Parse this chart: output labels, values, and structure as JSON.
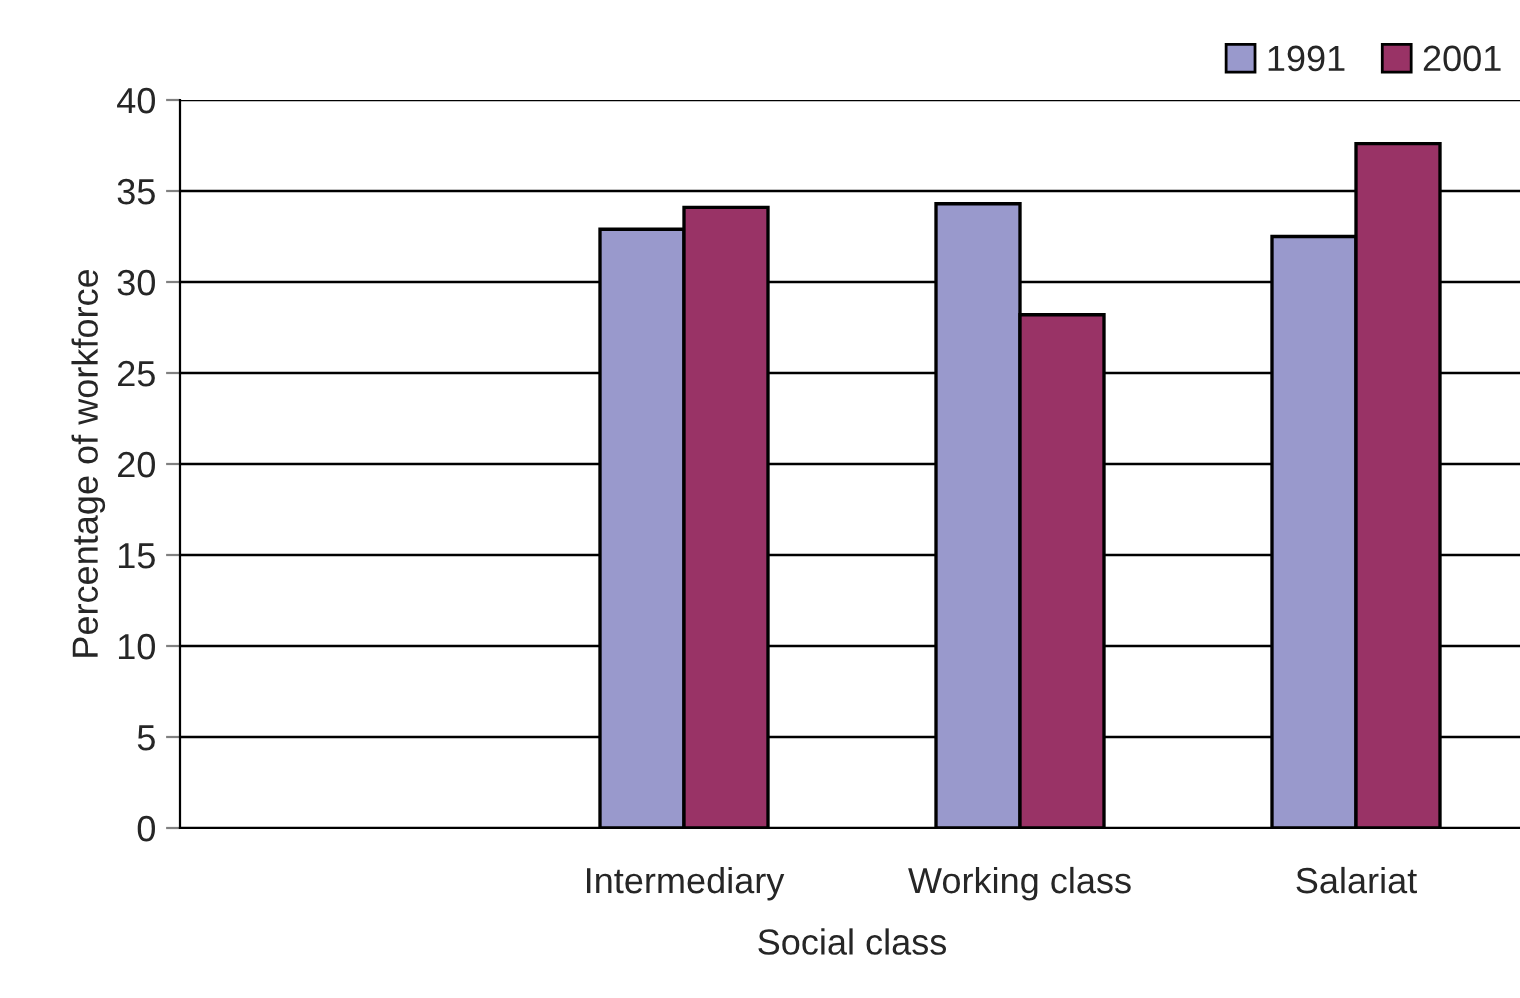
{
  "chart_data": {
    "type": "bar",
    "xlabel": "Social class",
    "ylabel": "Percentage of workforce",
    "categories": [
      null,
      "Intermediary",
      "Working class",
      "Salariat"
    ],
    "series": [
      {
        "name": "1991",
        "color": "#9999cc",
        "values": [
          null,
          32.9,
          34.3,
          32.5
        ]
      },
      {
        "name": "2001",
        "color": "#993366",
        "values": [
          null,
          34.1,
          28.2,
          37.6
        ]
      }
    ],
    "ylim": [
      0,
      40
    ],
    "yticks": [
      0,
      5,
      10,
      15,
      20,
      25,
      30,
      35,
      40
    ],
    "grid": "y",
    "legend": "top right"
  }
}
